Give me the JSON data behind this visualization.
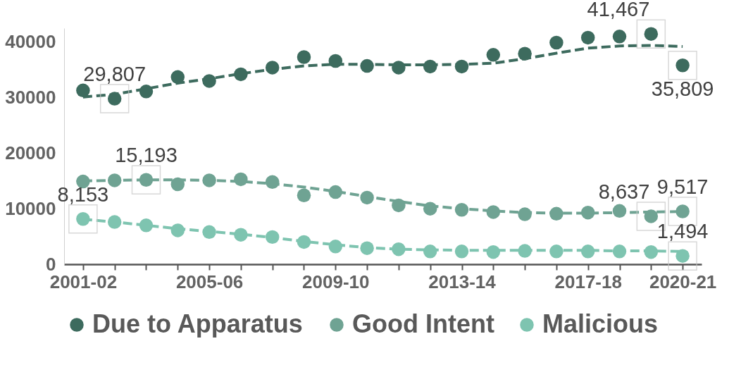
{
  "chart_data": {
    "type": "scatter",
    "categories": [
      "2001-02",
      null,
      null,
      null,
      "2005-06",
      null,
      null,
      null,
      "2009-10",
      null,
      null,
      null,
      "2013-14",
      null,
      null,
      null,
      "2017-18",
      null,
      null,
      "2020-21"
    ],
    "ylim": [
      0,
      42500
    ],
    "yticks": [
      0,
      10000,
      20000,
      30000,
      40000
    ],
    "grid": false,
    "legend": "bottom",
    "marker": "circle",
    "series": [
      {
        "name": "Due to Apparatus",
        "color": "#3d6b5e",
        "values": [
          31300,
          29807,
          31100,
          33700,
          33000,
          34200,
          35400,
          37300,
          36600,
          35700,
          35400,
          35600,
          35600,
          37700,
          37900,
          39900,
          40800,
          41000,
          41467,
          35809
        ],
        "value_labels": [
          null,
          "29,807",
          null,
          null,
          null,
          null,
          null,
          null,
          null,
          null,
          null,
          null,
          null,
          null,
          null,
          null,
          null,
          null,
          "41,467",
          "35,809"
        ]
      },
      {
        "name": "Good Intent",
        "color": "#6fa393",
        "values": [
          14900,
          15100,
          15193,
          14400,
          15100,
          15300,
          14800,
          12400,
          13000,
          12000,
          10600,
          10000,
          9800,
          9400,
          9000,
          9100,
          9300,
          9600,
          8637,
          9517
        ],
        "value_labels": [
          null,
          null,
          "15,193",
          null,
          null,
          null,
          null,
          null,
          null,
          null,
          null,
          null,
          null,
          null,
          null,
          null,
          null,
          null,
          "8,637",
          "9,517"
        ]
      },
      {
        "name": "Malicious",
        "color": "#7ec4b0",
        "values": [
          8153,
          7600,
          7000,
          6100,
          5800,
          5300,
          4900,
          4000,
          3200,
          2900,
          2700,
          2300,
          2300,
          2200,
          2400,
          2300,
          2300,
          2300,
          2200,
          1494
        ],
        "value_labels": [
          "8,153",
          null,
          null,
          null,
          null,
          null,
          null,
          null,
          null,
          null,
          null,
          null,
          null,
          null,
          null,
          null,
          null,
          null,
          null,
          "1,494"
        ]
      },
      {
        "type": "line",
        "line_style": "dashed",
        "marker": "none",
        "color": "#3d6b5e",
        "values": [
          30100,
          30600,
          31600,
          32600,
          33400,
          34300,
          35100,
          35700,
          36000,
          36000,
          35900,
          35900,
          36000,
          36200,
          37000,
          38000,
          38900,
          39300,
          39400,
          39200
        ]
      },
      {
        "type": "line",
        "line_style": "dashed",
        "marker": "none",
        "color": "#6fa393",
        "values": [
          15000,
          15100,
          15200,
          15200,
          15100,
          14900,
          14500,
          13900,
          13100,
          12200,
          11300,
          10500,
          10000,
          9600,
          9300,
          9200,
          9200,
          9300,
          9400,
          9500
        ]
      },
      {
        "type": "line",
        "line_style": "dashed",
        "marker": "none",
        "color": "#7ec4b0",
        "values": [
          8100,
          7600,
          7000,
          6400,
          5900,
          5400,
          4800,
          4100,
          3500,
          3000,
          2700,
          2600,
          2500,
          2500,
          2500,
          2500,
          2500,
          2400,
          2400,
          2300
        ]
      }
    ]
  }
}
